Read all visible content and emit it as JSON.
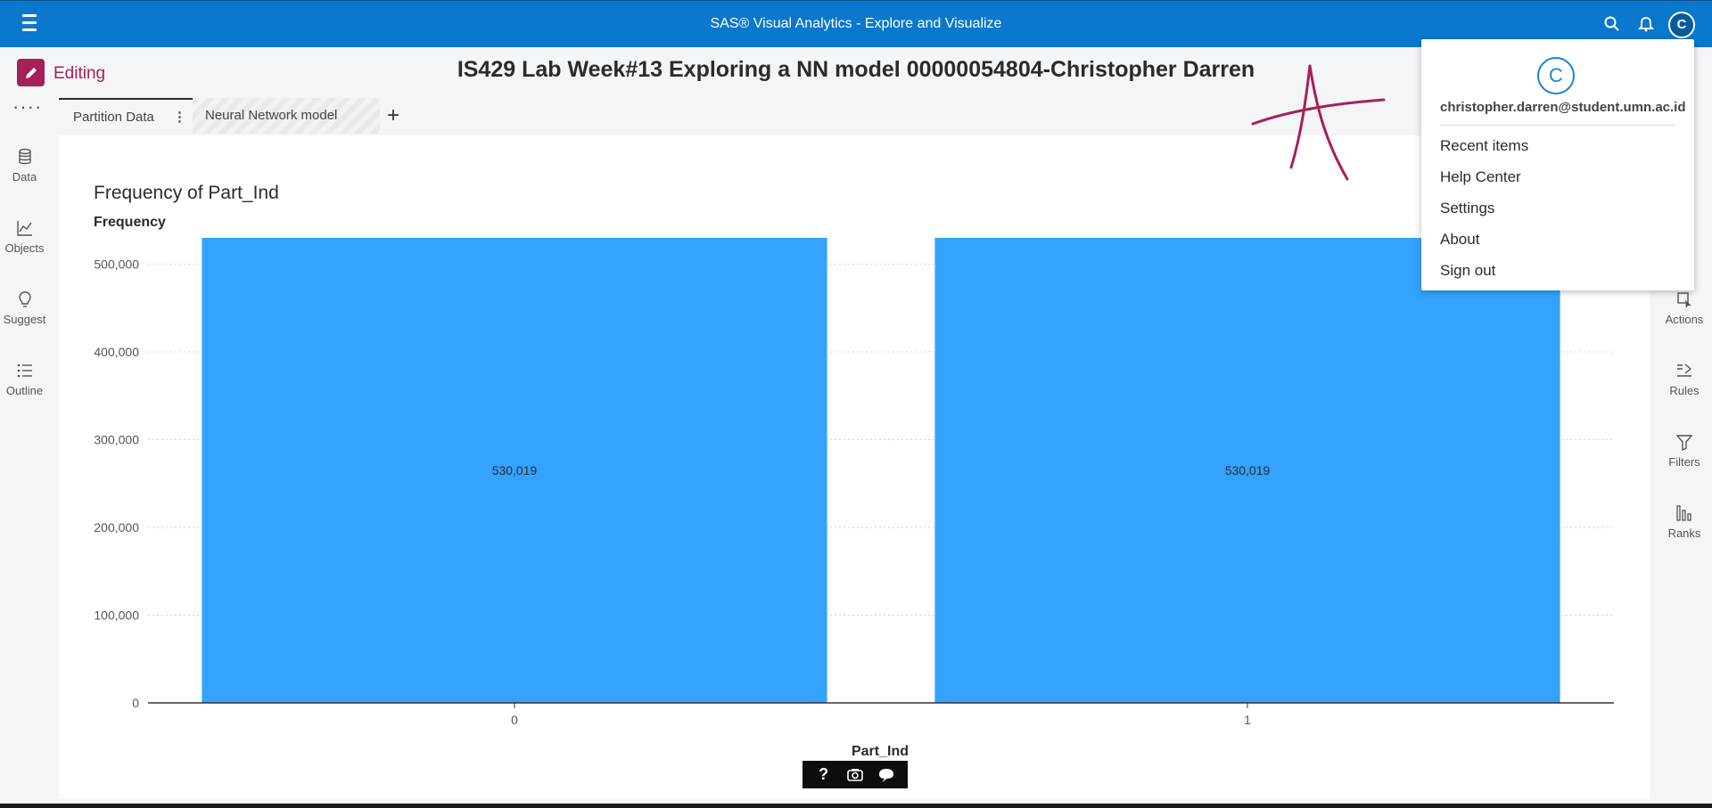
{
  "topbar": {
    "menu_icon": "hamburger-icon",
    "app_title": "SAS® Visual Analytics - Explore and Visualize",
    "search_icon": "search-icon",
    "notifications_icon": "bell-icon",
    "user_initial": "C"
  },
  "toolbar": {
    "mode_label": "Editing",
    "report_title": "IS429 Lab Week#13 Exploring a NN model 00000054804-Christopher Darren"
  },
  "left_rail": {
    "more": "····",
    "items": [
      {
        "label": "Data",
        "icon": "database-icon"
      },
      {
        "label": "Objects",
        "icon": "line-chart-icon"
      },
      {
        "label": "Suggest",
        "icon": "lightbulb-icon"
      },
      {
        "label": "Outline",
        "icon": "list-icon"
      }
    ]
  },
  "right_rail": {
    "items": [
      {
        "label": "Actions",
        "icon": "actions-icon"
      },
      {
        "label": "Rules",
        "icon": "rules-icon"
      },
      {
        "label": "Filters",
        "icon": "filter-icon"
      },
      {
        "label": "Ranks",
        "icon": "ranks-icon"
      }
    ]
  },
  "tabs": [
    {
      "label": "Partition Data",
      "active": true
    },
    {
      "label": "Neural Network model",
      "active": false
    }
  ],
  "add_tab": "+",
  "tab_menu": "⋮",
  "chart_data": {
    "type": "bar",
    "title": "Frequency of Part_Ind",
    "ylabel": "Frequency",
    "xlabel": "Part_Ind",
    "categories": [
      "0",
      "1"
    ],
    "values": [
      530019,
      530019
    ],
    "value_labels": [
      "530,019",
      "530,019"
    ],
    "yticks": [
      0,
      100000,
      200000,
      300000,
      400000,
      500000
    ],
    "ytick_labels": [
      "0",
      "100,000",
      "200,000",
      "300,000",
      "400,000",
      "500,000"
    ],
    "ylim": [
      0,
      530019
    ],
    "grid": true,
    "bar_color": "#33a3ff"
  },
  "chart_toolbar": {
    "help": "?",
    "icons": [
      "help-icon",
      "screenshot-icon",
      "comment-icon"
    ]
  },
  "user_menu": {
    "initial": "C",
    "email": "christopher.darren@student.umn.ac.id",
    "items": [
      "Recent items",
      "Help Center",
      "Settings",
      "About",
      "Sign out"
    ]
  },
  "colors": {
    "topbar": "#0a78cc",
    "editing_accent": "#a5205b",
    "bar": "#33a3ff",
    "annotation": "#a5205b"
  }
}
